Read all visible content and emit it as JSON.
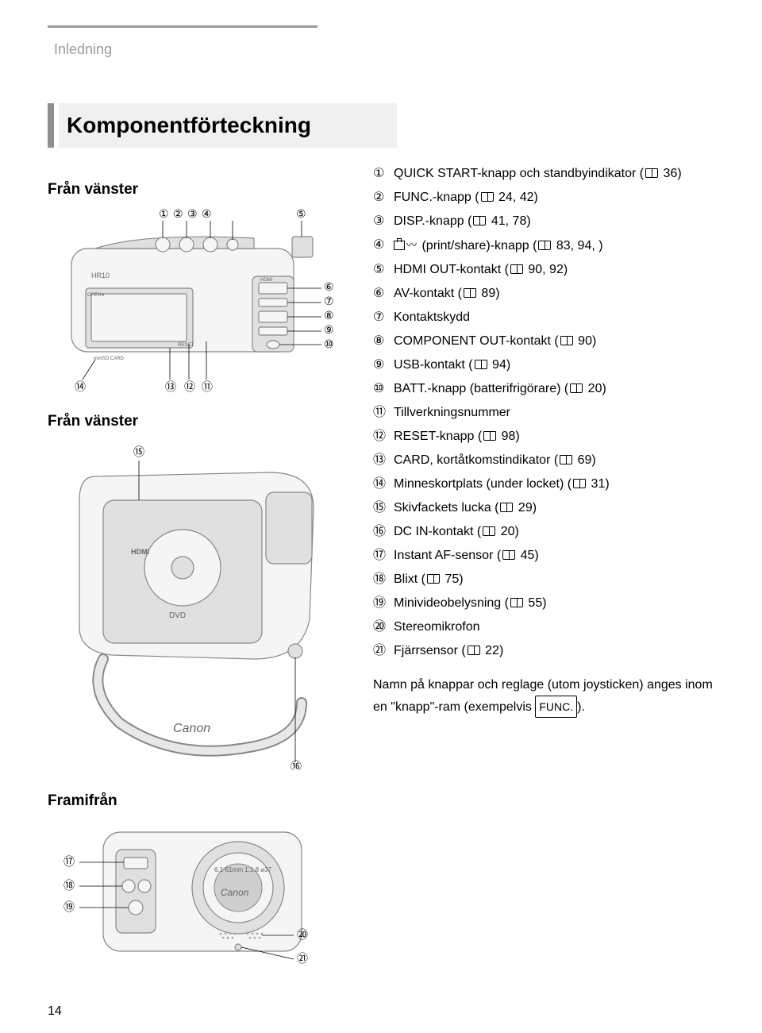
{
  "section_label": "Inledning",
  "title": "Komponentförteckning",
  "left_view_label": "Från vänster",
  "left_view_label_2": "Från vänster",
  "front_label": "Framifrån",
  "page_number": "14",
  "callouts_top": [
    "①",
    "②",
    "③",
    "④",
    "⑤",
    "⑥",
    "⑦",
    "⑧",
    "⑨",
    "⑩",
    "⑪",
    "⑫",
    "⑬",
    "⑭"
  ],
  "callout_15": "⑮",
  "callout_16": "⑯",
  "front_callouts": [
    "⑰",
    "⑱",
    "⑲",
    "⑳",
    "㉑"
  ],
  "camera_label_hr10": "HR10",
  "camera_label_open": "OPEN",
  "camera_label_reset": "RESET",
  "camera_label_sd": "miniSD CARD",
  "camera_label_hdmi": "HDMI",
  "camera_text_dvd": "DVD",
  "items": [
    {
      "num": "①",
      "text_a": "QUICK START-knapp och standbyindikator (",
      "ref": "36",
      "text_b": ")"
    },
    {
      "num": "②",
      "text_a": "FUNC.-knapp (",
      "ref": "24, 42",
      "text_b": ")"
    },
    {
      "num": "③",
      "text_a": "DISP.-knapp (",
      "ref": "41, 78",
      "text_b": ")"
    },
    {
      "num": "④",
      "text_a": "",
      "icon": "print",
      "text_mid": " (print/share)-knapp (",
      "ref": "83, 94, ",
      "text_b": ")"
    },
    {
      "num": "⑤",
      "text_a": "HDMI OUT-kontakt (",
      "ref": "90, 92",
      "text_b": ")"
    },
    {
      "num": "⑥",
      "text_a": "AV-kontakt (",
      "ref": "89",
      "text_b": ")"
    },
    {
      "num": "⑦",
      "text_a": "Kontaktskydd",
      "ref": "",
      "text_b": ""
    },
    {
      "num": "⑧",
      "text_a": "COMPONENT OUT-kontakt (",
      "ref": "90",
      "text_b": ")"
    },
    {
      "num": "⑨",
      "text_a": "USB-kontakt (",
      "ref": "94",
      "text_b": ")"
    },
    {
      "num": "⑩",
      "text_a": "BATT.-knapp (batterifrigörare) (",
      "ref": "20",
      "text_b": ")"
    },
    {
      "num": "⑪",
      "text_a": "Tillverkningsnummer",
      "ref": "",
      "text_b": ""
    },
    {
      "num": "⑫",
      "text_a": "RESET-knapp (",
      "ref": "98",
      "text_b": ")"
    },
    {
      "num": "⑬",
      "text_a": "CARD, kortåtkomstindikator (",
      "ref": "69",
      "text_b": ")"
    },
    {
      "num": "⑭",
      "text_a": "Minneskortplats (under locket) (",
      "ref": "31",
      "text_b": ")"
    },
    {
      "num": "⑮",
      "text_a": "Skivfackets lucka (",
      "ref": "29",
      "text_b": ")"
    },
    {
      "num": "⑯",
      "text_a": "DC IN-kontakt (",
      "ref": "20",
      "text_b": ")"
    },
    {
      "num": "⑰",
      "text_a": "Instant AF-sensor (",
      "ref": "45",
      "text_b": ")"
    },
    {
      "num": "⑱",
      "text_a": "Blixt (",
      "ref": "75",
      "text_b": ")"
    },
    {
      "num": "⑲",
      "text_a": "Minivideobelysning (",
      "ref": "55",
      "text_b": ")"
    },
    {
      "num": "⑳",
      "text_a": "Stereomikrofon",
      "ref": "",
      "text_b": ""
    },
    {
      "num": "㉑",
      "text_a": "Fjärrsensor (",
      "ref": "22",
      "text_b": ")"
    }
  ],
  "note_text_a": "Namn på knappar och reglage (utom joysticken) anges inom en ",
  "note_quoted": "knapp",
  "note_text_b": "-ram (exempelvis ",
  "note_kbd": "FUNC.",
  "note_text_c": ").",
  "colors": {
    "gray_line": "#9c9c9c",
    "gray_fill": "#f0f0f0",
    "gray_bar": "#8f8f8f",
    "camera_light": "#f5f5f5",
    "camera_mid": "#e0e0e0",
    "camera_stroke": "#888888",
    "text": "#000000",
    "bg": "#ffffff"
  }
}
